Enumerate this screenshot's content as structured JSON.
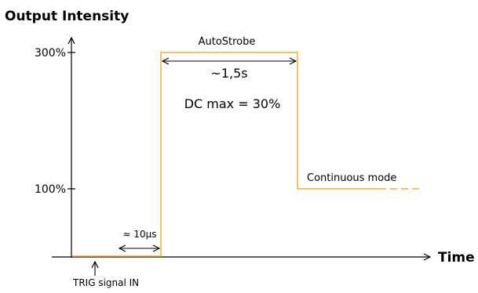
{
  "title": "Output Intensity",
  "x_axis_label": "Time",
  "ticks": [
    {
      "id": "tick-300",
      "label": "300%"
    },
    {
      "id": "tick-100",
      "label": "100%"
    }
  ],
  "annotations": {
    "autostrobe": "AutoStrobe",
    "duration": "~1,5s",
    "duty_cycle": "DC max = 30%",
    "continuous": "Continuous mode",
    "delay": "≈ 10µs",
    "trigger": "TRIG signal IN"
  },
  "colors": {
    "signal": "#F2B12E",
    "axis": "#000000"
  }
}
